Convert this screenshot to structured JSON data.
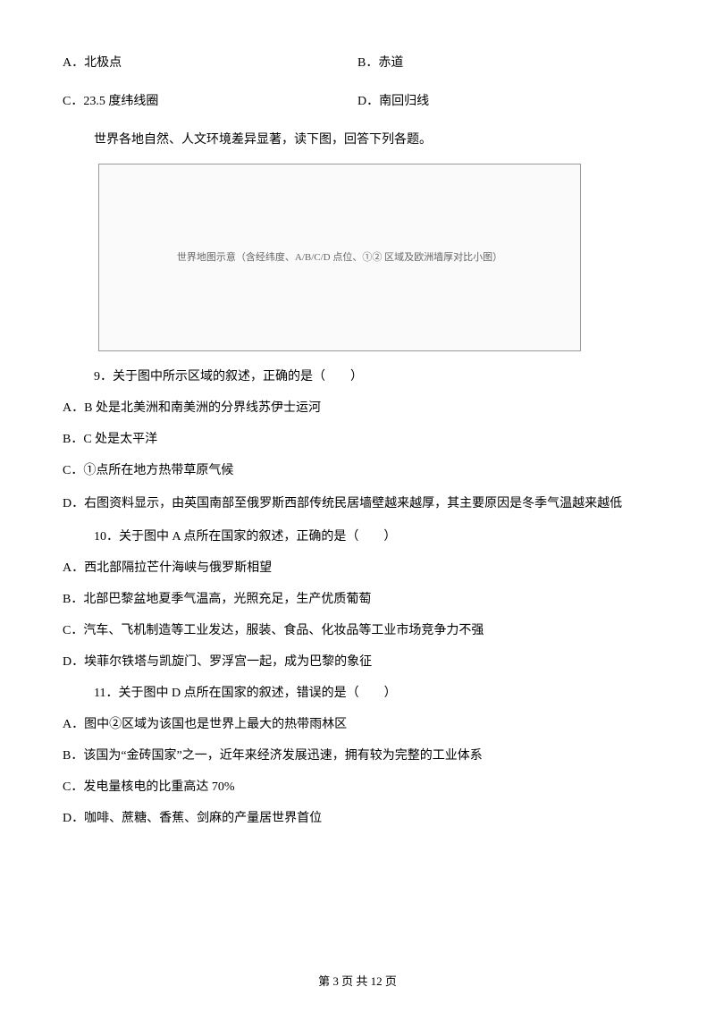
{
  "q_prev": {
    "A": "A．北极点",
    "B": "B．赤道",
    "C": "C．23.5 度纬线圈",
    "D": "D．南回归线"
  },
  "intro": "世界各地自然、人文环境差异显著，读下图，回答下列各题。",
  "figure_alt": "世界地图示意（含经纬度、A/B/C/D 点位、①② 区域及欧洲墙厚对比小图）",
  "q9": {
    "stem": "9．关于图中所示区域的叙述，正确的是（　　）",
    "A": "A．B 处是北美洲和南美洲的分界线苏伊士运河",
    "B": "B．C 处是太平洋",
    "C": "C．①点所在地方热带草原气候",
    "D": "D．右图资料显示，由英国南部至俄罗斯西部传统民居墙壁越来越厚，其主要原因是冬季气温越来越低"
  },
  "q10": {
    "stem": "10．关于图中 A 点所在国家的叙述，正确的是（　　）",
    "A": "A．西北部隔拉芒什海峡与俄罗斯相望",
    "B": "B．北部巴黎盆地夏季气温高，光照充足，生产优质葡萄",
    "C": "C．汽车、飞机制造等工业发达，服装、食品、化妆品等工业市场竞争力不强",
    "D": "D．埃菲尔铁塔与凯旋门、罗浮宫一起，成为巴黎的象征"
  },
  "q11": {
    "stem": "11．关于图中 D 点所在国家的叙述，错误的是（　　）",
    "A": "A．图中②区域为该国也是世界上最大的热带雨林区",
    "B": "B．该国为“金砖国家”之一，近年来经济发展迅速，拥有较为完整的工业体系",
    "C": "C．发电量核电的比重高达 70%",
    "D": "D．咖啡、蔗糖、香蕉、剑麻的产量居世界首位"
  },
  "footer": "第 3 页 共 12 页"
}
